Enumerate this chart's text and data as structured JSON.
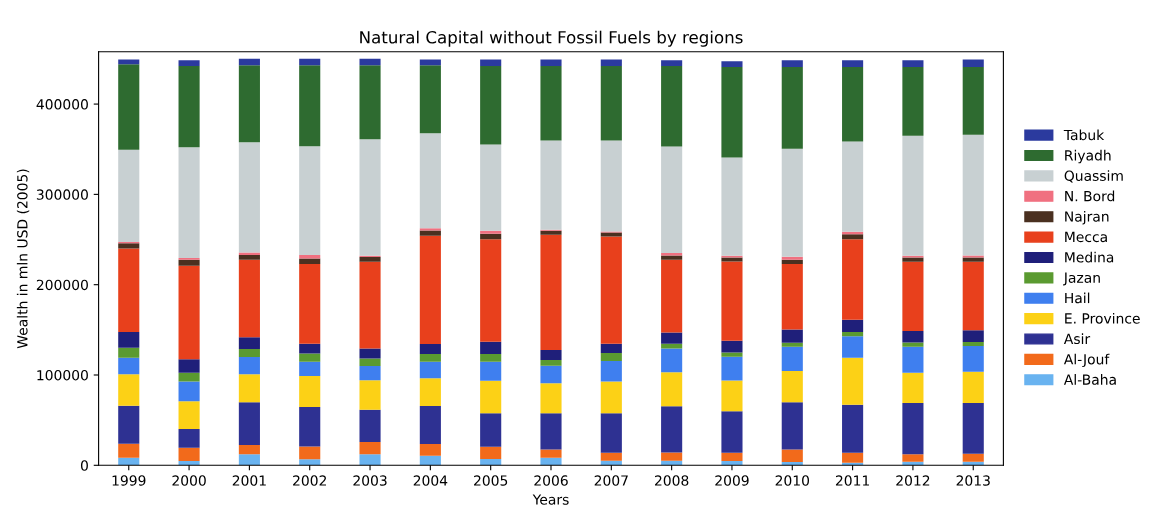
{
  "chart_data": {
    "type": "bar",
    "stacked": true,
    "title": "Natural Capital without Fossil Fuels by regions",
    "xlabel": "Years",
    "ylabel": "Wealth in mln USD (2005)",
    "categories": [
      "1999",
      "2000",
      "2001",
      "2002",
      "2003",
      "2004",
      "2005",
      "2006",
      "2007",
      "2008",
      "2009",
      "2010",
      "2011",
      "2012",
      "2013"
    ],
    "ylim": [
      0,
      458000
    ],
    "yticks": [
      0,
      100000,
      200000,
      300000,
      400000
    ],
    "grid": false,
    "legend": "right",
    "series": [
      {
        "name": "Al-Baha",
        "color": "#69b3f0",
        "values": [
          8400,
          4800,
          12100,
          6600,
          12100,
          10600,
          7000,
          8400,
          5100,
          5100,
          4800,
          3700,
          2900,
          4000,
          4000
        ]
      },
      {
        "name": "Al-Jouf",
        "color": "#f26a1b",
        "values": [
          15400,
          14600,
          10300,
          14300,
          13600,
          12900,
          13500,
          9200,
          8800,
          9200,
          9100,
          13900,
          11000,
          8100,
          8800
        ]
      },
      {
        "name": "Asir",
        "color": "#2e3192",
        "values": [
          42200,
          20900,
          47300,
          43600,
          35900,
          42100,
          37100,
          40000,
          43700,
          51000,
          45900,
          52100,
          53200,
          56800,
          56100
        ]
      },
      {
        "name": "E. Province",
        "color": "#fcd116",
        "values": [
          34800,
          30500,
          31100,
          34500,
          32600,
          30800,
          35900,
          33300,
          35100,
          37700,
          34000,
          34800,
          52000,
          33700,
          34800
        ]
      },
      {
        "name": "Hail",
        "color": "#3f7fef",
        "values": [
          18300,
          21900,
          19100,
          15700,
          15800,
          18300,
          21200,
          19400,
          22800,
          26400,
          26400,
          26700,
          23900,
          28600,
          28300
        ]
      },
      {
        "name": "Jazan",
        "color": "#5a9a30",
        "values": [
          11000,
          9900,
          8800,
          9200,
          8400,
          8500,
          8500,
          6300,
          8800,
          5100,
          4800,
          4400,
          4700,
          4800,
          4400
        ]
      },
      {
        "name": "Medina",
        "color": "#1f1f7a",
        "values": [
          17600,
          14700,
          13200,
          10600,
          11000,
          11000,
          13500,
          11000,
          10200,
          12500,
          12800,
          14700,
          13600,
          12800,
          13200
        ]
      },
      {
        "name": "Mecca",
        "color": "#e8401c",
        "values": [
          92400,
          103800,
          85800,
          88400,
          96100,
          119900,
          113700,
          127600,
          118800,
          80700,
          88000,
          72600,
          89100,
          76700,
          75900
        ]
      },
      {
        "name": "Najran",
        "color": "#4a3020",
        "values": [
          5900,
          6600,
          5100,
          6200,
          5100,
          5800,
          5900,
          4400,
          4400,
          4700,
          4400,
          4800,
          5500,
          4700,
          4700
        ]
      },
      {
        "name": "N. Bord",
        "color": "#f07080",
        "values": [
          1400,
          1800,
          2900,
          3700,
          1500,
          2600,
          3300,
          1100,
          1100,
          2600,
          1900,
          3300,
          2600,
          1900,
          2200
        ]
      },
      {
        "name": "Quassim",
        "color": "#c8d0d2",
        "values": [
          102000,
          122800,
          122100,
          120600,
          129000,
          105200,
          95600,
          98900,
          100800,
          118000,
          108800,
          119500,
          100000,
          132700,
          133500
        ]
      },
      {
        "name": "Riyadh",
        "color": "#2e6b30",
        "values": [
          94600,
          89800,
          85100,
          89500,
          81800,
          75200,
          86900,
          82500,
          82500,
          89100,
          100100,
          90500,
          82500,
          76200,
          75100
        ]
      },
      {
        "name": "Tabuk",
        "color": "#2b3a9e",
        "values": [
          5500,
          6300,
          7300,
          7300,
          7300,
          6600,
          7400,
          7400,
          7400,
          6300,
          6300,
          7400,
          7400,
          7400,
          8500
        ]
      }
    ]
  }
}
